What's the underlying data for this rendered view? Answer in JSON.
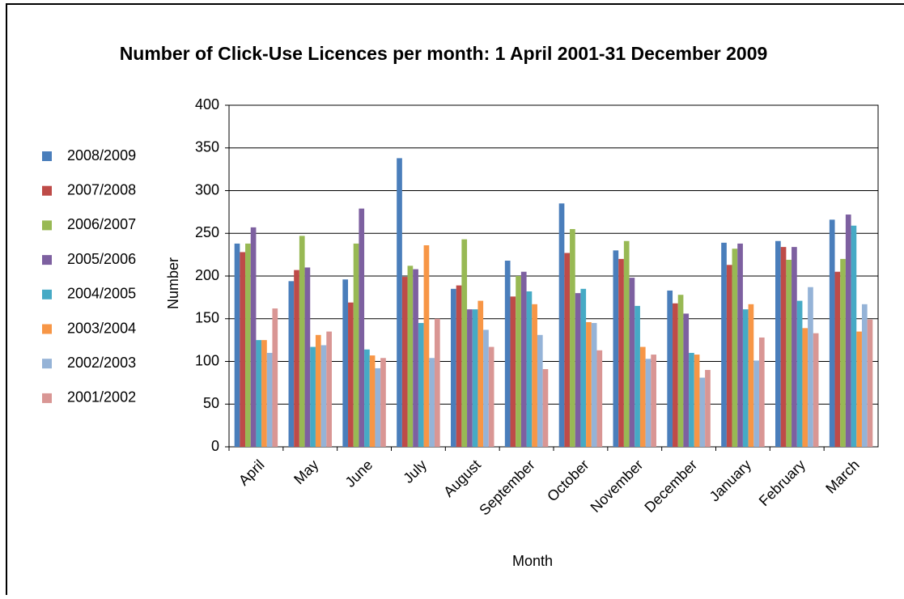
{
  "chart_data": {
    "type": "bar",
    "title": "Number of Click-Use Licences per month: 1 April 2001-31 December 2009",
    "x_label": "Month",
    "y_label": "Number",
    "categories": [
      "April",
      "May",
      "June",
      "July",
      "August",
      "September",
      "October",
      "November",
      "December",
      "January",
      "February",
      "March"
    ],
    "series": [
      {
        "name": "2008/2009",
        "color": "#4a7ebb",
        "values": [
          238,
          194,
          196,
          338,
          185,
          218,
          285,
          230,
          183,
          239,
          241,
          266
        ]
      },
      {
        "name": "2007/2008",
        "color": "#be4b48",
        "values": [
          228,
          207,
          169,
          199,
          189,
          176,
          227,
          220,
          168,
          213,
          234,
          205
        ]
      },
      {
        "name": "2006/2007",
        "color": "#98b954",
        "values": [
          238,
          247,
          238,
          212,
          243,
          200,
          255,
          241,
          178,
          232,
          219,
          220
        ]
      },
      {
        "name": "2005/2006",
        "color": "#7d60a0",
        "values": [
          257,
          210,
          279,
          208,
          161,
          205,
          180,
          198,
          156,
          238,
          234,
          272
        ]
      },
      {
        "name": "2004/2005",
        "color": "#46aac5",
        "values": [
          125,
          117,
          114,
          145,
          161,
          182,
          185,
          165,
          110,
          161,
          171,
          259
        ]
      },
      {
        "name": "2003/2004",
        "color": "#f79646",
        "values": [
          125,
          131,
          107,
          236,
          171,
          167,
          146,
          117,
          108,
          167,
          139,
          135
        ]
      },
      {
        "name": "2002/2003",
        "color": "#95b3d7",
        "values": [
          110,
          119,
          92,
          104,
          137,
          131,
          145,
          103,
          81,
          101,
          187,
          167
        ]
      },
      {
        "name": "2001/2002",
        "color": "#d99694",
        "values": [
          162,
          135,
          104,
          150,
          117,
          91,
          113,
          108,
          90,
          128,
          133,
          149
        ]
      }
    ],
    "ylim": [
      0,
      400
    ],
    "yticks": [
      0,
      50,
      100,
      150,
      200,
      250,
      300,
      350,
      400
    ],
    "grid": true,
    "legend": "left"
  }
}
